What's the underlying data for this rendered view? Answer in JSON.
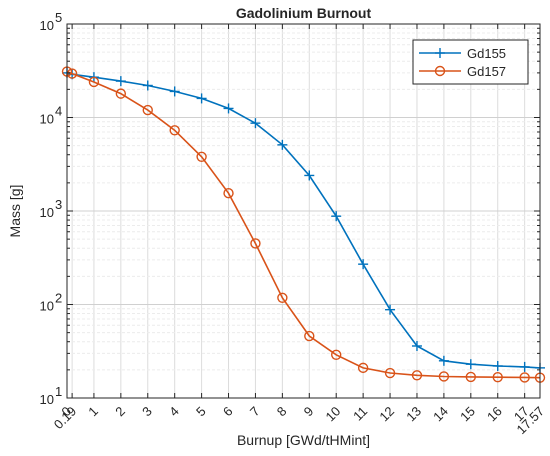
{
  "chart_data": {
    "type": "line",
    "title": "Gadolinium Burnout",
    "xlabel": "Burnup [GWd/tHMint]",
    "ylabel": "Mass [g]",
    "y_scale": "log",
    "ylim": [
      10,
      100000
    ],
    "y_ticks": [
      {
        "value": 10,
        "base": "10",
        "exp": "1"
      },
      {
        "value": 100,
        "base": "10",
        "exp": "2"
      },
      {
        "value": 1000,
        "base": "10",
        "exp": "3"
      },
      {
        "value": 10000,
        "base": "10",
        "exp": "4"
      },
      {
        "value": 100000,
        "base": "10",
        "exp": "5"
      }
    ],
    "xlim": [
      0,
      17.57
    ],
    "x_ticks": [
      "0",
      "0.19",
      "1",
      "2",
      "3",
      "4",
      "5",
      "6",
      "7",
      "8",
      "9",
      "10",
      "11",
      "12",
      "13",
      "14",
      "15",
      "16",
      "17",
      "17.57"
    ],
    "x": [
      0,
      0.19,
      1,
      2,
      3,
      4,
      5,
      6,
      7,
      8,
      9,
      10,
      11,
      12,
      13,
      14,
      15,
      16,
      17,
      17.57
    ],
    "grid": true,
    "legend_position": "top-right",
    "series": [
      {
        "name": "Gd155",
        "color": "#0072BD",
        "marker": "plus",
        "values": [
          30000,
          29000,
          27000,
          24500,
          22000,
          19000,
          16000,
          12500,
          8700,
          5100,
          2400,
          880,
          270,
          88,
          36,
          25,
          23,
          22,
          21.5,
          21
        ]
      },
      {
        "name": "Gd157",
        "color": "#D95319",
        "marker": "circle",
        "values": [
          31000,
          29500,
          24000,
          18000,
          12000,
          7300,
          3800,
          1550,
          450,
          118,
          46,
          29,
          21,
          18.5,
          17.5,
          17,
          16.8,
          16.7,
          16.6,
          16.5
        ]
      }
    ]
  }
}
